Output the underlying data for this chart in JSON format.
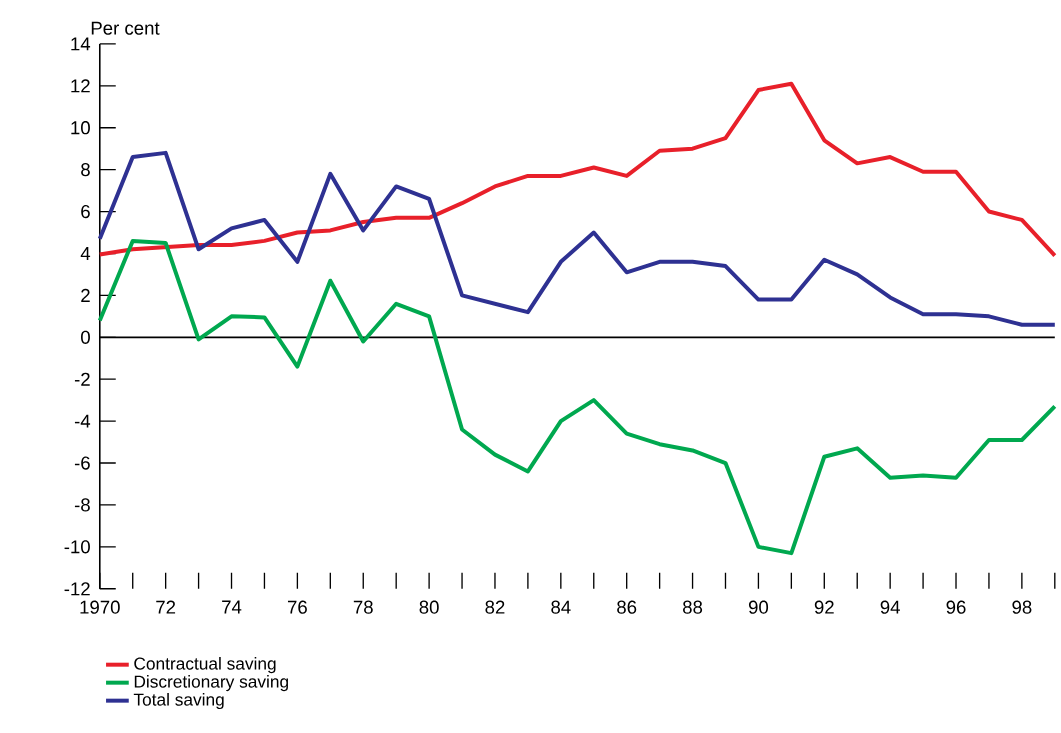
{
  "chart_data": {
    "type": "line",
    "ylabel": "Per cent",
    "x": [
      1970,
      1971,
      1972,
      1973,
      1974,
      1975,
      1976,
      1977,
      1978,
      1979,
      1980,
      1981,
      1982,
      1983,
      1984,
      1985,
      1986,
      1987,
      1988,
      1989,
      1990,
      1991,
      1992,
      1993,
      1994,
      1995,
      1996,
      1997,
      1998,
      1999
    ],
    "series": [
      {
        "name": "Contractual saving",
        "color": "#e8202a",
        "values": [
          3.95,
          4.2,
          4.3,
          4.4,
          4.4,
          4.6,
          5.0,
          5.1,
          5.5,
          5.7,
          5.7,
          6.4,
          7.2,
          7.7,
          7.7,
          8.1,
          7.7,
          8.9,
          9.0,
          9.5,
          11.8,
          12.1,
          9.4,
          8.3,
          8.6,
          7.9,
          7.9,
          6.0,
          5.6,
          3.9
        ]
      },
      {
        "name": "Discretionary saving",
        "color": "#00a84f",
        "values": [
          0.8,
          4.6,
          4.5,
          -0.1,
          1.0,
          0.95,
          -1.4,
          2.7,
          -0.2,
          1.6,
          1.0,
          -4.4,
          -5.6,
          -6.4,
          -4.0,
          -3.0,
          -4.6,
          -5.1,
          -5.4,
          -6.0,
          -10.0,
          -10.3,
          -5.7,
          -5.3,
          -6.7,
          -6.6,
          -6.7,
          -4.9,
          -4.9,
          -3.3
        ]
      },
      {
        "name": "Total saving",
        "color": "#2e3192",
        "values": [
          4.7,
          8.6,
          8.8,
          4.2,
          5.2,
          5.6,
          3.6,
          7.8,
          5.1,
          7.2,
          6.6,
          2.0,
          1.6,
          1.2,
          3.6,
          5.0,
          3.1,
          3.6,
          3.6,
          3.4,
          1.8,
          1.8,
          3.7,
          3.0,
          1.9,
          1.1,
          1.1,
          1.0,
          0.6,
          0.6
        ]
      }
    ],
    "xlim": [
      1970,
      1999
    ],
    "xticks": [
      {
        "value": 1970,
        "label": "1970"
      },
      {
        "value": 1971,
        "label": null
      },
      {
        "value": 1972,
        "label": "72"
      },
      {
        "value": 1973,
        "label": null
      },
      {
        "value": 1974,
        "label": "74"
      },
      {
        "value": 1975,
        "label": null
      },
      {
        "value": 1976,
        "label": "76"
      },
      {
        "value": 1977,
        "label": null
      },
      {
        "value": 1978,
        "label": "78"
      },
      {
        "value": 1979,
        "label": null
      },
      {
        "value": 1980,
        "label": "80"
      },
      {
        "value": 1981,
        "label": null
      },
      {
        "value": 1982,
        "label": "82"
      },
      {
        "value": 1983,
        "label": null
      },
      {
        "value": 1984,
        "label": "84"
      },
      {
        "value": 1985,
        "label": null
      },
      {
        "value": 1986,
        "label": "86"
      },
      {
        "value": 1987,
        "label": null
      },
      {
        "value": 1988,
        "label": "88"
      },
      {
        "value": 1989,
        "label": null
      },
      {
        "value": 1990,
        "label": "90"
      },
      {
        "value": 1991,
        "label": null
      },
      {
        "value": 1992,
        "label": "92"
      },
      {
        "value": 1993,
        "label": null
      },
      {
        "value": 1994,
        "label": "94"
      },
      {
        "value": 1995,
        "label": null
      },
      {
        "value": 1996,
        "label": "96"
      },
      {
        "value": 1997,
        "label": null
      },
      {
        "value": 1998,
        "label": "98"
      },
      {
        "value": 1999,
        "label": null
      }
    ],
    "ylim": [
      -12,
      14
    ],
    "yticks": [
      -12,
      -10,
      -8,
      -6,
      -4,
      -2,
      0,
      2,
      4,
      6,
      8,
      10,
      12,
      14
    ],
    "ref_lines": [
      {
        "axis": "y",
        "value": 0,
        "color": "#000000"
      }
    ],
    "legend": "bottom",
    "line_style": "solid"
  }
}
